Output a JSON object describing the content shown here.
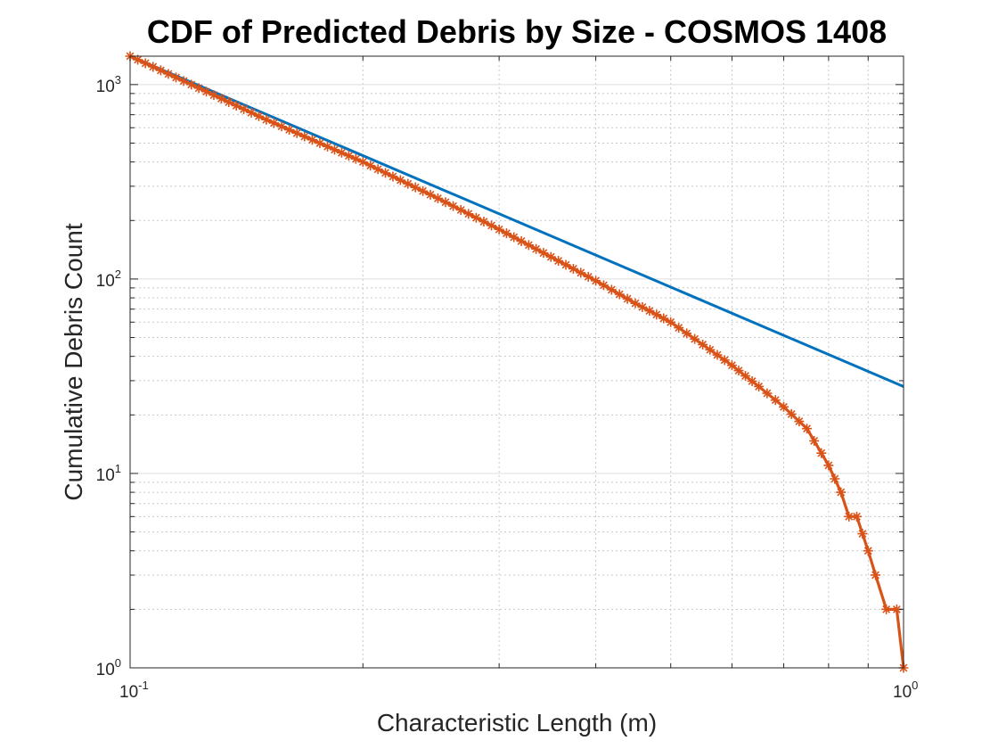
{
  "chart_data": {
    "type": "line",
    "title": "CDF of Predicted Debris by Size - COSMOS 1408",
    "xlabel": "Characteristic Length (m)",
    "ylabel": "Cumulative Debris Count",
    "xscale": "log",
    "yscale": "log",
    "xlim": [
      0.1,
      1
    ],
    "ylim": [
      1,
      1400
    ],
    "grid": true,
    "minor_grid": true,
    "legend": "none",
    "x_ticks": [
      {
        "base": "10",
        "exp": "-1"
      },
      {
        "base": "10",
        "exp": "0"
      }
    ],
    "y_ticks": [
      {
        "base": "10",
        "exp": "0"
      },
      {
        "base": "10",
        "exp": "1"
      },
      {
        "base": "10",
        "exp": "2"
      },
      {
        "base": "10",
        "exp": "3"
      }
    ],
    "colors": {
      "model": "#0072BD",
      "predicted": "#D95319"
    },
    "series": [
      {
        "style": "solid",
        "marker": "none",
        "x": [
          0.1,
          1.0
        ],
        "y": [
          1400,
          28
        ]
      },
      {
        "style": "solid",
        "marker": "asterisk",
        "x": [
          0.1,
          0.12,
          0.15,
          0.18,
          0.2,
          0.25,
          0.3,
          0.35,
          0.4,
          0.45,
          0.5,
          0.55,
          0.6,
          0.65,
          0.7,
          0.75,
          0.8,
          0.83,
          0.85,
          0.87,
          0.9,
          0.92,
          0.95,
          0.98,
          1.0
        ],
        "y": [
          1400,
          1000,
          660,
          480,
          400,
          260,
          180,
          130,
          98,
          75,
          60,
          46,
          36,
          28,
          22,
          17,
          11,
          8,
          6,
          6,
          4,
          3,
          2,
          2,
          1
        ]
      }
    ]
  }
}
